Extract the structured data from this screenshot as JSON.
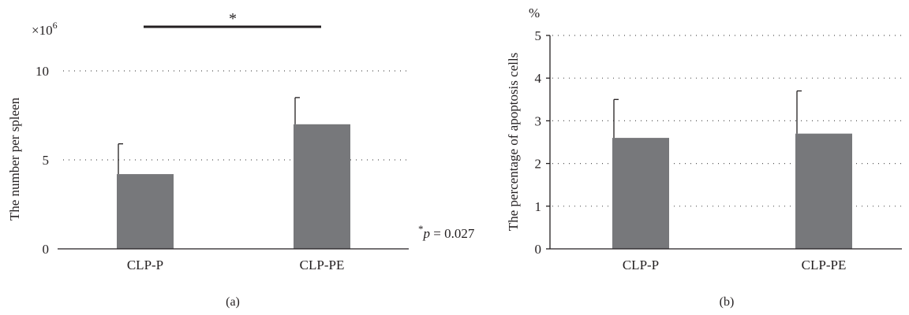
{
  "chart_data": [
    {
      "type": "bar",
      "panel_label": "(a)",
      "categories": [
        "CLP-P",
        "CLP-PE"
      ],
      "values": [
        4.2,
        7.0
      ],
      "errors": [
        1.7,
        1.5
      ],
      "ylabel": "The number per spleen",
      "unit_label": "×10",
      "unit_exponent": "6",
      "ylim": [
        0,
        10
      ],
      "yticks": [
        0,
        5,
        10
      ],
      "grid": true,
      "significance": {
        "marker": "*",
        "pairs": [
          "CLP-P",
          "CLP-PE"
        ]
      },
      "annotation": {
        "star": "*",
        "p": "p",
        "rest": " = 0.027"
      }
    },
    {
      "type": "bar",
      "panel_label": "(b)",
      "categories": [
        "CLP-P",
        "CLP-PE"
      ],
      "values": [
        2.6,
        2.7
      ],
      "errors": [
        0.9,
        1.0
      ],
      "ylabel": "The percentage of apoptosis cells",
      "unit_label": "%",
      "ylim": [
        0,
        5
      ],
      "yticks": [
        0,
        1,
        2,
        3,
        4,
        5
      ],
      "grid": true
    }
  ],
  "colors": {
    "bar": "#77787b",
    "axis": "#231f20"
  }
}
